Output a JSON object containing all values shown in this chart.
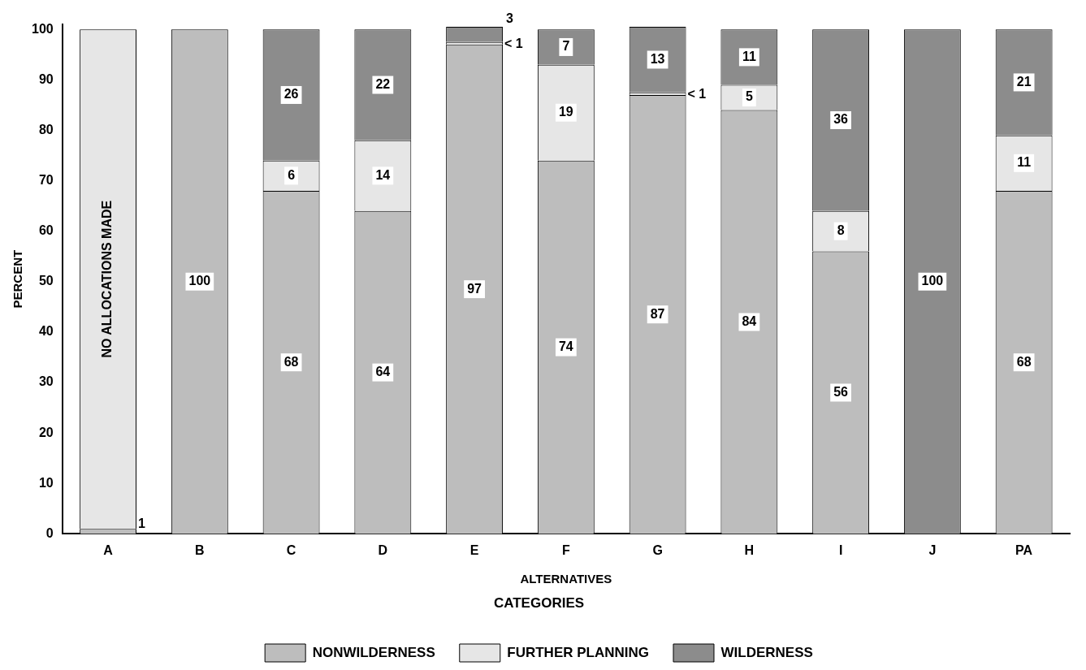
{
  "chart_data": {
    "type": "bar",
    "stacked": true,
    "xlabel": "ALTERNATIVES",
    "ylabel": "PERCENT",
    "legend_title": "CATEGORIES",
    "legend": "bottom",
    "grid": false,
    "categories": [
      "A",
      "B",
      "C",
      "D",
      "E",
      "F",
      "G",
      "H",
      "I",
      "J",
      "PA"
    ],
    "ylim": [
      0,
      101
    ],
    "yticks": [
      0,
      10,
      20,
      30,
      40,
      50,
      60,
      70,
      80,
      90,
      100
    ],
    "series": [
      {
        "name": "NONWILDERNESS",
        "color": "#bdbdbd",
        "values": [
          1,
          100,
          68,
          64,
          97,
          74,
          87,
          84,
          56,
          0,
          68
        ],
        "value_labels": [
          "1",
          "100",
          "68",
          "64",
          "97",
          "74",
          "87",
          "84",
          "56",
          null,
          "68"
        ]
      },
      {
        "name": "FURTHER PLANNING",
        "color": "#e6e6e6",
        "values": [
          99,
          0,
          6,
          14,
          0.5,
          19,
          0.5,
          5,
          8,
          0,
          11
        ],
        "value_labels": [
          null,
          null,
          "6",
          "14",
          "< 1",
          "19",
          "< 1",
          "5",
          "8",
          null,
          "11"
        ]
      },
      {
        "name": "WILDERNESS",
        "color": "#8c8c8c",
        "values": [
          0,
          0,
          26,
          22,
          3,
          7,
          13,
          11,
          36,
          100,
          21
        ],
        "value_labels": [
          null,
          null,
          "26",
          "22",
          "3",
          "7",
          "13",
          "11",
          "36",
          "100",
          "21"
        ]
      }
    ],
    "annotations": [
      "NO ALLOCATIONS MADE"
    ]
  }
}
